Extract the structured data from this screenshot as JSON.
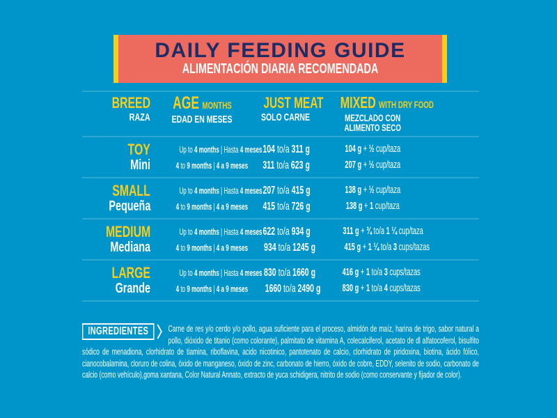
{
  "colors": {
    "background": "#0095CA",
    "banner_fill": "#ED6A5E",
    "stripe_yellow": "#F7CE1B",
    "navy": "#1D2B67",
    "accent_yellow": "#F7CE1B",
    "white": "#FFFFFF"
  },
  "banner": {
    "title": "DAILY FEEDING GUIDE",
    "subtitle": "ALIMENTACIÓN DIARIA RECOMENDADA"
  },
  "table": {
    "headers": {
      "breed_en": "BREED",
      "breed_es": "RAZA",
      "age_en": "AGE",
      "age_en_small": "MONTHS",
      "age_es": "EDAD EN MESES",
      "meat_en": "JUST MEAT",
      "meat_es": "SOLO CARNE",
      "mixed_en": "MIXED",
      "mixed_en_small": "WITH DRY FOOD",
      "mixed_es_1": "MEZCLADO CON",
      "mixed_es_2": "ALIMENTO SECO"
    },
    "rows": [
      {
        "breed_en": "TOY",
        "breed_es": "Mini",
        "age": [
          [
            {
              "t": "Up to ",
              "b": 0
            },
            {
              "t": "4 months",
              "b": 1
            },
            {
              "t": " | Hasta ",
              "b": 0
            },
            {
              "t": "4 meses",
              "b": 1
            }
          ],
          [
            {
              "t": "4",
              "b": 1
            },
            {
              "t": " to ",
              "b": 0
            },
            {
              "t": "9 months",
              "b": 1
            },
            {
              "t": " | ",
              "b": 0
            },
            {
              "t": "4 a 9 meses",
              "b": 1
            }
          ]
        ],
        "meat": [
          [
            {
              "t": "104",
              "b": 1
            },
            {
              "t": " to/a ",
              "b": 0
            },
            {
              "t": "311 g",
              "b": 1
            }
          ],
          [
            {
              "t": "311",
              "b": 1
            },
            {
              "t": " to/a ",
              "b": 0
            },
            {
              "t": "623 g",
              "b": 1
            }
          ]
        ],
        "mixed": [
          [
            {
              "t": "104 g",
              "b": 1
            },
            {
              "t": " + ",
              "b": 0
            },
            {
              "t": "½",
              "b": 1
            },
            {
              "t": " cup/taza",
              "b": 0
            }
          ],
          [
            {
              "t": "207 g",
              "b": 1
            },
            {
              "t": " + ",
              "b": 0
            },
            {
              "t": "½",
              "b": 1
            },
            {
              "t": " cup/taza",
              "b": 0
            }
          ]
        ]
      },
      {
        "breed_en": "SMALL",
        "breed_es": "Pequeña",
        "age": [
          [
            {
              "t": "Up to ",
              "b": 0
            },
            {
              "t": "4 months",
              "b": 1
            },
            {
              "t": " | Hasta ",
              "b": 0
            },
            {
              "t": "4 meses",
              "b": 1
            }
          ],
          [
            {
              "t": "4",
              "b": 1
            },
            {
              "t": " to ",
              "b": 0
            },
            {
              "t": "9 months",
              "b": 1
            },
            {
              "t": " | ",
              "b": 0
            },
            {
              "t": "4 a 9 meses",
              "b": 1
            }
          ]
        ],
        "meat": [
          [
            {
              "t": "207",
              "b": 1
            },
            {
              "t": " to/a ",
              "b": 0
            },
            {
              "t": "415 g",
              "b": 1
            }
          ],
          [
            {
              "t": "415",
              "b": 1
            },
            {
              "t": " to/a ",
              "b": 0
            },
            {
              "t": "726 g",
              "b": 1
            }
          ]
        ],
        "mixed": [
          [
            {
              "t": "138 g",
              "b": 1
            },
            {
              "t": " + ",
              "b": 0
            },
            {
              "t": "½",
              "b": 1
            },
            {
              "t": " cup/taza",
              "b": 0
            }
          ],
          [
            {
              "t": "138 g",
              "b": 1
            },
            {
              "t": " + ",
              "b": 0
            },
            {
              "t": "1",
              "b": 1
            },
            {
              "t": " cup/taza",
              "b": 0
            }
          ]
        ]
      },
      {
        "breed_en": "MEDIUM",
        "breed_es": "Mediana",
        "age": [
          [
            {
              "t": "Up to ",
              "b": 0
            },
            {
              "t": "4 months",
              "b": 1
            },
            {
              "t": " | Hasta ",
              "b": 0
            },
            {
              "t": "4 meses",
              "b": 1
            }
          ],
          [
            {
              "t": "4",
              "b": 1
            },
            {
              "t": " to ",
              "b": 0
            },
            {
              "t": "9 months",
              "b": 1
            },
            {
              "t": " | ",
              "b": 0
            },
            {
              "t": "4 a 9 meses",
              "b": 1
            }
          ]
        ],
        "meat": [
          [
            {
              "t": "622",
              "b": 1
            },
            {
              "t": " to/a ",
              "b": 0
            },
            {
              "t": "934 g",
              "b": 1
            }
          ],
          [
            {
              "t": "934",
              "b": 1
            },
            {
              "t": " to/a ",
              "b": 0
            },
            {
              "t": "1245 g",
              "b": 1
            }
          ]
        ],
        "mixed": [
          [
            {
              "t": "311 g",
              "b": 1
            },
            {
              "t": " + ",
              "b": 0
            },
            {
              "t": "¾",
              "b": 1
            },
            {
              "t": " to/a ",
              "b": 0
            },
            {
              "t": "1 ¼",
              "b": 1
            },
            {
              "t": " cup/taza",
              "b": 0
            }
          ],
          [
            {
              "t": "415 g",
              "b": 1
            },
            {
              "t": " + ",
              "b": 0
            },
            {
              "t": "1 ¼",
              "b": 1
            },
            {
              "t": " to/a ",
              "b": 0
            },
            {
              "t": "3",
              "b": 1
            },
            {
              "t": " cups/tazas",
              "b": 0
            }
          ]
        ]
      },
      {
        "breed_en": "LARGE",
        "breed_es": "Grande",
        "age": [
          [
            {
              "t": "Up to ",
              "b": 0
            },
            {
              "t": "4 months",
              "b": 1
            },
            {
              "t": " | Hasta ",
              "b": 0
            },
            {
              "t": "4 meses",
              "b": 1
            }
          ],
          [
            {
              "t": "4",
              "b": 1
            },
            {
              "t": " to ",
              "b": 0
            },
            {
              "t": "9 months",
              "b": 1
            },
            {
              "t": " | ",
              "b": 0
            },
            {
              "t": "4 a 9 meses",
              "b": 1
            }
          ]
        ],
        "meat": [
          [
            {
              "t": "830",
              "b": 1
            },
            {
              "t": " to/a ",
              "b": 0
            },
            {
              "t": "1660 g",
              "b": 1
            }
          ],
          [
            {
              "t": "1660",
              "b": 1
            },
            {
              "t": " to/a ",
              "b": 0
            },
            {
              "t": "2490 g",
              "b": 1
            }
          ]
        ],
        "mixed": [
          [
            {
              "t": "416 g",
              "b": 1
            },
            {
              "t": " + ",
              "b": 0
            },
            {
              "t": "1",
              "b": 1
            },
            {
              "t": " to/a ",
              "b": 0
            },
            {
              "t": "3",
              "b": 1
            },
            {
              "t": " cups/tazas",
              "b": 0
            }
          ],
          [
            {
              "t": "830 g",
              "b": 1
            },
            {
              "t": " + ",
              "b": 0
            },
            {
              "t": "1",
              "b": 1
            },
            {
              "t": " to/a ",
              "b": 0
            },
            {
              "t": "4",
              "b": 1
            },
            {
              "t": " cups/tazas",
              "b": 0
            }
          ]
        ]
      }
    ]
  },
  "ingredients": {
    "label": "INGREDIENTES",
    "text": "Carne de res y/o cerdo y/o pollo, agua suficiente para el proceso, almidón de maíz, harina de trigo, sabor natural a pollo, dióxido de titanio (como colorante), palmitato de vitamina A, colecalciferol, acetato de dl alfatocoferol, bisulfito sódico de menadiona, clorhidrato de tiamina, riboflavina, acido nicotinico, pantotenato de calcio, clorhidrato de piridoxina, biotina, ácido fólico, cianocobalamina, cloruro de colina, óxido de manganeso, óxido de zinc, carbonato de hierro, óxido de cobre, EDDY, selenito de sodio, carbonato de calcio (como vehículo),goma xantana, Color Natural Annato, extracto de yuca schidigera, nitrito de sodio (como conservante y fijador de color)."
  }
}
